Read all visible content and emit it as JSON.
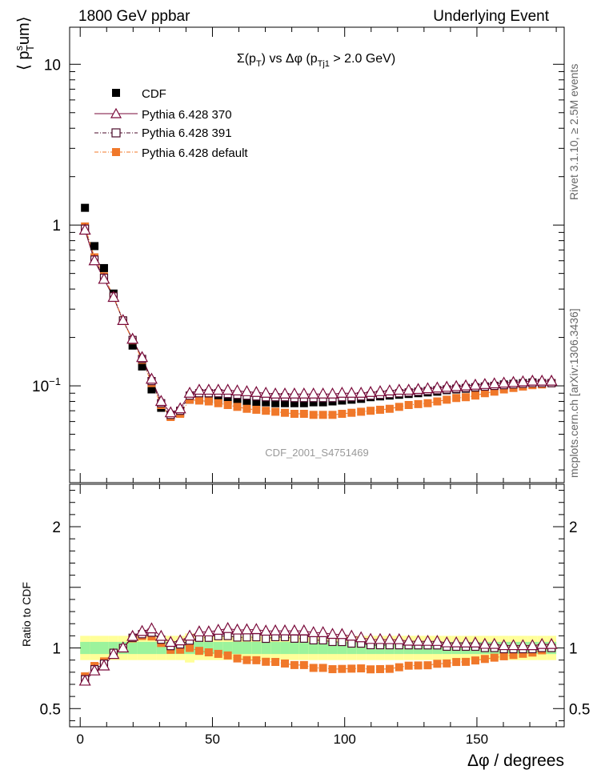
{
  "header": {
    "left": "1800 GeV ppbar",
    "right": "Underlying Event"
  },
  "side_texts": {
    "rivet": "Rivet 3.1.10, ≥ 2.5M events",
    "mcplots": "mcplots.cern.ch [arXiv:1306.3436]"
  },
  "colors": {
    "cdf": "#000000",
    "p370": "#7a0a3a",
    "p391": "#4a0a2a",
    "pdef": "#f0782a",
    "band_green": "#9cf39c",
    "band_yellow": "#ffff99"
  },
  "chart_data": {
    "type": "scatter",
    "title": "Σ(pT) vs Δφ (pTj1 > 2.0 GeV)",
    "title_main": "Σ(p",
    "title_sub1": "T",
    "title_mid": ") vs Δφ (p",
    "title_sub2": "Tj1",
    "title_end": " > 2.0 GeV)",
    "xlabel": "Δφ / degrees",
    "ylabel": "⟨ psTum⟩",
    "ylabel_a": "⟨ p",
    "ylabel_sup": "s",
    "ylabel_sub": "T",
    "ylabel_b": "um⟩",
    "ratio_ylabel": "Ratio to CDF",
    "analysis_tag": "CDF_2001_S4751469",
    "xlim": [
      -4,
      183
    ],
    "ylim_main": [
      0.025,
      17
    ],
    "ylim_ratio": [
      0.35,
      2.35
    ],
    "x_ticks": [
      "0",
      "50",
      "100",
      "150"
    ],
    "x_tick_values": [
      0,
      50,
      100,
      150
    ],
    "y_ticks_main": [
      {
        "value": 0.1,
        "base": "10",
        "exp": "−1"
      },
      {
        "value": 1,
        "base": "1",
        "exp": ""
      },
      {
        "value": 10,
        "base": "10",
        "exp": ""
      }
    ],
    "y_ticks_ratio": [
      {
        "value": 0.5,
        "label": "0.5"
      },
      {
        "value": 1,
        "label": "1"
      },
      {
        "value": 2,
        "label": "2"
      }
    ],
    "x": [
      1.8,
      5.4,
      9,
      12.6,
      16.2,
      19.8,
      23.4,
      27,
      30.6,
      34.2,
      37.8,
      41.4,
      45,
      48.6,
      52.2,
      55.8,
      59.4,
      63,
      66.6,
      70.2,
      73.8,
      77.4,
      81,
      84.6,
      88.2,
      91.8,
      95.4,
      99,
      102.6,
      106.2,
      109.8,
      113.4,
      117,
      120.6,
      124.2,
      127.8,
      131.4,
      135,
      138.6,
      142.2,
      145.8,
      149.4,
      153,
      156.6,
      160.2,
      163.8,
      167.4,
      171,
      174.6,
      178.2
    ],
    "series": [
      {
        "name": "CDF",
        "values": [
          1.28,
          0.74,
          0.54,
          0.375,
          0.255,
          0.178,
          0.132,
          0.095,
          0.073,
          0.065,
          0.068,
          0.082,
          0.083,
          0.083,
          0.082,
          0.081,
          0.081,
          0.08,
          0.079,
          0.079,
          0.078,
          0.078,
          0.078,
          0.078,
          0.079,
          0.079,
          0.08,
          0.081,
          0.082,
          0.083,
          0.085,
          0.086,
          0.087,
          0.088,
          0.089,
          0.09,
          0.091,
          0.092,
          0.094,
          0.095,
          0.096,
          0.097,
          0.099,
          0.1,
          0.102,
          0.103,
          0.104,
          0.105,
          0.104,
          0.104
        ]
      },
      {
        "name": "Pythia 6.428 370",
        "values": [
          0.93,
          0.6,
          0.46,
          0.355,
          0.255,
          0.195,
          0.15,
          0.11,
          0.08,
          0.068,
          0.072,
          0.09,
          0.094,
          0.094,
          0.094,
          0.094,
          0.093,
          0.092,
          0.091,
          0.09,
          0.089,
          0.089,
          0.089,
          0.089,
          0.089,
          0.089,
          0.089,
          0.09,
          0.09,
          0.09,
          0.091,
          0.092,
          0.093,
          0.094,
          0.094,
          0.095,
          0.096,
          0.097,
          0.098,
          0.099,
          0.1,
          0.101,
          0.102,
          0.103,
          0.104,
          0.105,
          0.106,
          0.107,
          0.107,
          0.107
        ]
      },
      {
        "name": "Pythia 6.428 391",
        "values": [
          0.95,
          0.61,
          0.47,
          0.36,
          0.255,
          0.193,
          0.147,
          0.107,
          0.078,
          0.066,
          0.07,
          0.087,
          0.09,
          0.09,
          0.09,
          0.089,
          0.088,
          0.087,
          0.086,
          0.085,
          0.085,
          0.085,
          0.084,
          0.084,
          0.084,
          0.084,
          0.084,
          0.085,
          0.085,
          0.086,
          0.087,
          0.088,
          0.089,
          0.09,
          0.091,
          0.092,
          0.093,
          0.094,
          0.095,
          0.096,
          0.097,
          0.098,
          0.099,
          0.1,
          0.101,
          0.102,
          0.103,
          0.104,
          0.104,
          0.104
        ]
      },
      {
        "name": "Pythia 6.428 default",
        "values": [
          0.98,
          0.63,
          0.48,
          0.36,
          0.255,
          0.192,
          0.145,
          0.104,
          0.076,
          0.064,
          0.067,
          0.082,
          0.081,
          0.08,
          0.078,
          0.076,
          0.074,
          0.072,
          0.071,
          0.07,
          0.069,
          0.068,
          0.067,
          0.067,
          0.066,
          0.066,
          0.066,
          0.067,
          0.068,
          0.069,
          0.07,
          0.071,
          0.072,
          0.074,
          0.076,
          0.077,
          0.078,
          0.08,
          0.082,
          0.084,
          0.085,
          0.087,
          0.09,
          0.092,
          0.095,
          0.097,
          0.099,
          0.101,
          0.102,
          0.104
        ]
      }
    ],
    "ratio_band_green": [
      0.05,
      0.05,
      0.05,
      0.05,
      0.05,
      0.05,
      0.05,
      0.05,
      0.05,
      0.05,
      0.05,
      0.05,
      0.05,
      0.05,
      0.05,
      0.05,
      0.05,
      0.05,
      0.05,
      0.05,
      0.05,
      0.05,
      0.05,
      0.05,
      0.05,
      0.05,
      0.05,
      0.05,
      0.05,
      0.05,
      0.05,
      0.05,
      0.05,
      0.05,
      0.05,
      0.05,
      0.05,
      0.05,
      0.05,
      0.05,
      0.05,
      0.05,
      0.05,
      0.05,
      0.05,
      0.05,
      0.05,
      0.05,
      0.05,
      0.05
    ],
    "ratio_band_yellow": [
      0.1,
      0.1,
      0.1,
      0.1,
      0.1,
      0.1,
      0.1,
      0.1,
      0.1,
      0.1,
      0.1,
      0.12,
      0.1,
      0.1,
      0.1,
      0.1,
      0.1,
      0.1,
      0.1,
      0.1,
      0.1,
      0.1,
      0.1,
      0.1,
      0.1,
      0.1,
      0.1,
      0.1,
      0.1,
      0.1,
      0.1,
      0.1,
      0.1,
      0.1,
      0.1,
      0.1,
      0.1,
      0.1,
      0.1,
      0.1,
      0.1,
      0.1,
      0.1,
      0.1,
      0.1,
      0.1,
      0.1,
      0.1,
      0.1,
      0.1
    ],
    "legend_position": "top-left"
  }
}
